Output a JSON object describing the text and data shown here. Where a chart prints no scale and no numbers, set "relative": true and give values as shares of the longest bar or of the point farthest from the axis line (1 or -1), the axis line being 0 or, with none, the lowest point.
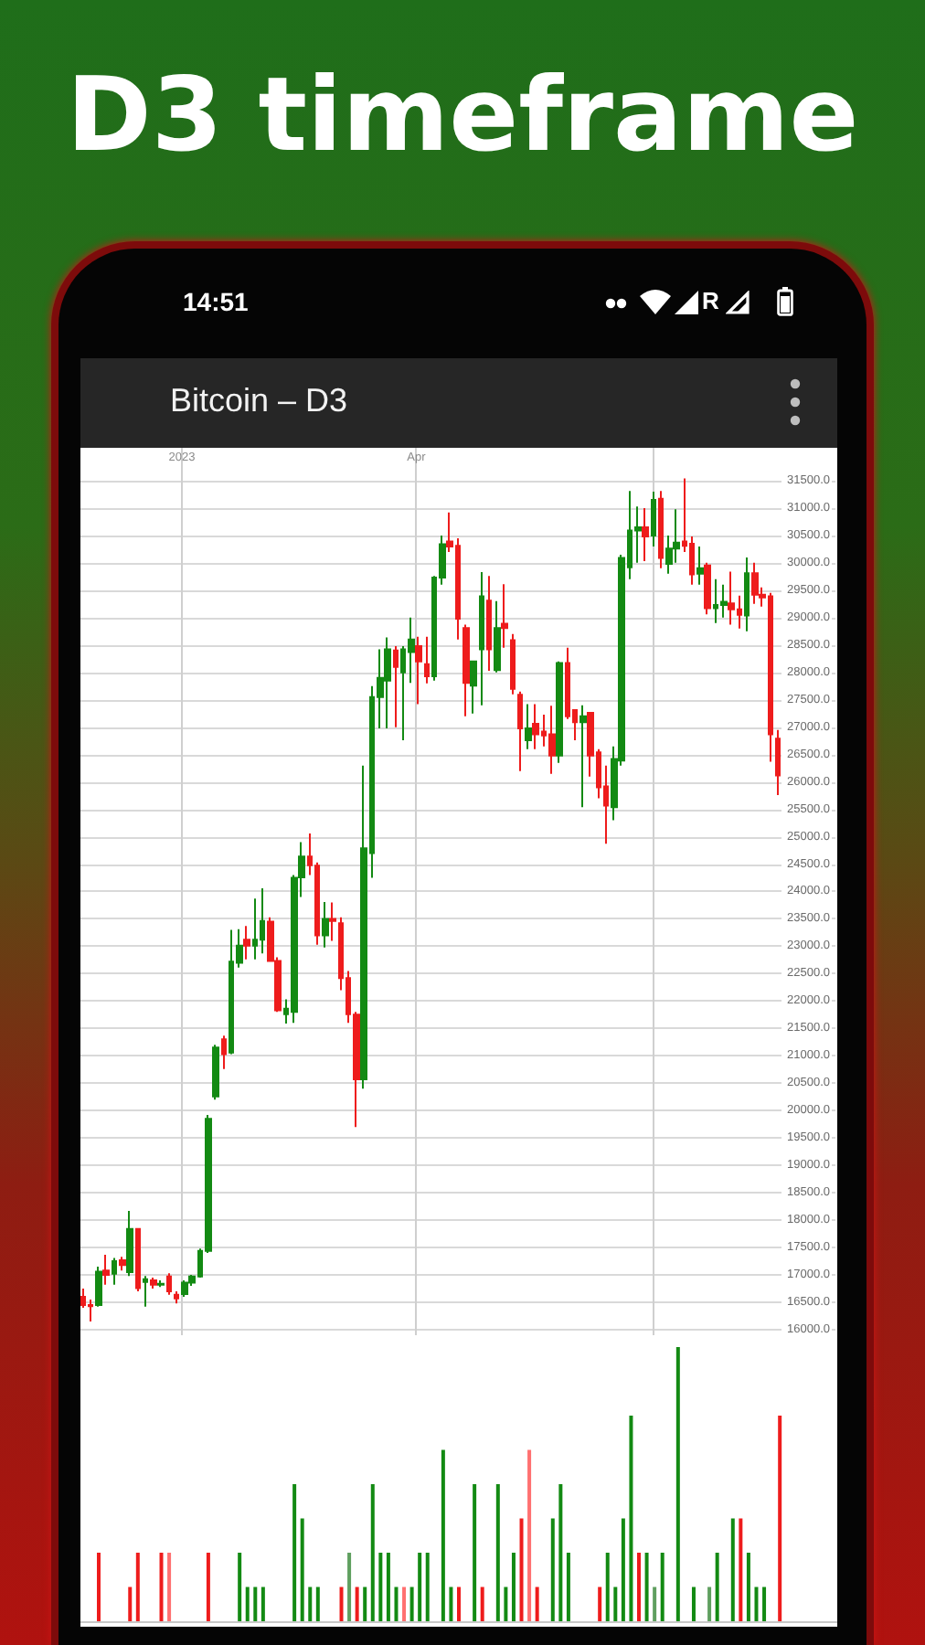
{
  "chart_data": [
    {
      "type": "candlestick",
      "title": "D3 timeframe",
      "subtitle": "Bitcoin – D3",
      "annotations": [
        "14:51",
        "R"
      ],
      "x": [
        "2022-11-24",
        "2022-11-27",
        "2022-11-30",
        "2022-12-03",
        "2022-12-06",
        "2022-12-09",
        "2022-12-12",
        "2022-12-15",
        "2022-12-18",
        "2022-12-21",
        "2022-12-24",
        "2022-12-27",
        "2022-12-30",
        "2023-01-02",
        "2023-01-05",
        "2023-01-08",
        "2023-01-11",
        "2023-01-14",
        "2023-01-17",
        "2023-01-20",
        "2023-01-23",
        "2023-01-26",
        "2023-01-29",
        "2023-02-01",
        "2023-02-04",
        "2023-02-07",
        "2023-02-10",
        "2023-02-13",
        "2023-02-16",
        "2023-02-19",
        "2023-02-22",
        "2023-02-25",
        "2023-02-28",
        "2023-03-03",
        "2023-03-06",
        "2023-03-09",
        "2023-03-12",
        "2023-03-15",
        "2023-03-18",
        "2023-03-21",
        "2023-03-24",
        "2023-03-27",
        "2023-03-30",
        "2023-04-02",
        "2023-04-05",
        "2023-04-08",
        "2023-04-11",
        "2023-04-14",
        "2023-04-17",
        "2023-04-20",
        "2023-04-23",
        "2023-04-26",
        "2023-04-29",
        "2023-05-02",
        "2023-05-05",
        "2023-05-08",
        "2023-05-11",
        "2023-05-14",
        "2023-05-17",
        "2023-05-20",
        "2023-05-23",
        "2023-05-26",
        "2023-05-29",
        "2023-06-01",
        "2023-06-04",
        "2023-06-07",
        "2023-06-10",
        "2023-06-13",
        "2023-06-16",
        "2023-06-19",
        "2023-06-22",
        "2023-06-25",
        "2023-06-28",
        "2023-07-01",
        "2023-07-04",
        "2023-07-07",
        "2023-07-10",
        "2023-07-13",
        "2023-07-16",
        "2023-07-19",
        "2023-07-22",
        "2023-07-25",
        "2023-07-28",
        "2023-07-31",
        "2023-08-03",
        "2023-08-06",
        "2023-08-09",
        "2023-08-12",
        "2023-08-15",
        "2023-08-18"
      ],
      "ohlc": [
        [
          16600,
          16750,
          16400,
          16450
        ],
        [
          16450,
          16550,
          16150,
          16430
        ],
        [
          16450,
          17150,
          16420,
          17060
        ],
        [
          17080,
          17370,
          16820,
          17000
        ],
        [
          17020,
          17310,
          16820,
          17250
        ],
        [
          17270,
          17330,
          17080,
          17180
        ],
        [
          17050,
          18170,
          16980,
          17840
        ],
        [
          17840,
          17850,
          16700,
          16760
        ],
        [
          16870,
          16980,
          16420,
          16920
        ],
        [
          16900,
          16950,
          16750,
          16820
        ],
        [
          16820,
          16900,
          16780,
          16840
        ],
        [
          16970,
          17030,
          16640,
          16700
        ],
        [
          16640,
          16700,
          16480,
          16570
        ],
        [
          16650,
          16900,
          16600,
          16860
        ],
        [
          16860,
          17000,
          16800,
          16970
        ],
        [
          16970,
          17480,
          16950,
          17440
        ],
        [
          17440,
          19920,
          17400,
          19850
        ],
        [
          20260,
          21200,
          20200,
          21150
        ],
        [
          21300,
          21370,
          20760,
          21030
        ],
        [
          21060,
          23300,
          21030,
          22720
        ],
        [
          22700,
          23310,
          22610,
          23010
        ],
        [
          23120,
          23370,
          22760,
          23010
        ],
        [
          23010,
          23870,
          22760,
          23120
        ],
        [
          23120,
          24060,
          22870,
          23460
        ],
        [
          23450,
          23530,
          22720,
          22730
        ],
        [
          22730,
          22800,
          21800,
          21830
        ],
        [
          21760,
          22030,
          21590,
          21860
        ],
        [
          21800,
          24300,
          21600,
          24250
        ],
        [
          24260,
          24900,
          23900,
          24640
        ],
        [
          24640,
          25060,
          24300,
          24480
        ],
        [
          24470,
          24530,
          23030,
          23200
        ],
        [
          23200,
          23810,
          22980,
          23500
        ],
        [
          23500,
          23800,
          23100,
          23460
        ],
        [
          23420,
          23530,
          22200,
          22420
        ],
        [
          22420,
          22550,
          21600,
          21760
        ],
        [
          21750,
          21800,
          19700,
          20570
        ],
        [
          20570,
          26300,
          20400,
          24790
        ],
        [
          24700,
          27750,
          24250,
          27550
        ],
        [
          27550,
          28420,
          26980,
          27900
        ],
        [
          27850,
          28640,
          26980,
          28420
        ],
        [
          28400,
          28480,
          27000,
          28100
        ],
        [
          28000,
          28480,
          26760,
          28420
        ],
        [
          28370,
          29000,
          27810,
          28600
        ],
        [
          28480,
          28650,
          27420,
          28200
        ],
        [
          28150,
          28650,
          27800,
          27930
        ],
        [
          27930,
          29760,
          27850,
          29730
        ],
        [
          29730,
          30500,
          29600,
          30340
        ],
        [
          30390,
          30920,
          30200,
          30300
        ],
        [
          30310,
          30450,
          28600,
          28980
        ],
        [
          28810,
          28870,
          27200,
          27810
        ],
        [
          27760,
          28200,
          27250,
          28200
        ],
        [
          28420,
          29830,
          27400,
          29390
        ],
        [
          29310,
          29760,
          28030,
          28420
        ],
        [
          28040,
          29300,
          28000,
          28810
        ],
        [
          28890,
          29610,
          28450,
          28810
        ],
        [
          28590,
          28700,
          27600,
          27700
        ],
        [
          27590,
          27650,
          26200,
          26980
        ],
        [
          26760,
          27420,
          26600,
          26980
        ],
        [
          27060,
          27420,
          26600,
          26870
        ],
        [
          26920,
          27230,
          26650,
          26850
        ],
        [
          26870,
          27390,
          26150,
          26480
        ],
        [
          26480,
          28200,
          26350,
          28170
        ],
        [
          28170,
          28450,
          27150,
          27200
        ],
        [
          27310,
          27330,
          26760,
          27090
        ],
        [
          27090,
          27400,
          25540,
          27200
        ],
        [
          27260,
          27260,
          26100,
          26480
        ],
        [
          26540,
          26600,
          25700,
          25900
        ],
        [
          25920,
          26300,
          24870,
          25570
        ],
        [
          25540,
          26650,
          25300,
          26420
        ],
        [
          26390,
          30150,
          26300,
          30090
        ],
        [
          29920,
          31310,
          29700,
          30590
        ],
        [
          30590,
          31030,
          30000,
          30650
        ],
        [
          30650,
          31000,
          30030,
          30480
        ],
        [
          30500,
          31300,
          30300,
          31150
        ],
        [
          31170,
          31310,
          29900,
          30090
        ],
        [
          29980,
          30500,
          29800,
          30260
        ],
        [
          30260,
          30980,
          30000,
          30370
        ],
        [
          30390,
          31540,
          30200,
          30310
        ],
        [
          30350,
          30480,
          29600,
          29790
        ],
        [
          29800,
          30300,
          29600,
          29900
        ],
        [
          29950,
          30000,
          29060,
          29170
        ],
        [
          29170,
          29700,
          28900,
          29230
        ],
        [
          29230,
          29600,
          29000,
          29290
        ],
        [
          29260,
          29840,
          28870,
          29150
        ],
        [
          29150,
          29400,
          28800,
          29050
        ],
        [
          29040,
          30100,
          28750,
          29810
        ],
        [
          29810,
          30000,
          29250,
          29420
        ],
        [
          29420,
          29550,
          29200,
          29370
        ],
        [
          29390,
          29450,
          26370,
          26870
        ],
        [
          26790,
          26950,
          25760,
          26120
        ]
      ],
      "colors": [
        "#ee1c1c",
        "#ee1c1c",
        "#138a13",
        "#ee1c1c",
        "#138a13",
        "#ee1c1c",
        "#138a13",
        "#ee1c1c",
        "#138a13",
        "#ee1c1c",
        "#138a13",
        "#ee1c1c",
        "#ee1c1c",
        "#138a13",
        "#138a13",
        "#138a13",
        "#138a13",
        "#138a13",
        "#ee1c1c",
        "#138a13",
        "#138a13",
        "#ee1c1c",
        "#138a13",
        "#138a13",
        "#ee1c1c",
        "#ee1c1c",
        "#138a13",
        "#138a13",
        "#138a13",
        "#ee1c1c",
        "#ee1c1c",
        "#138a13",
        "#ee1c1c",
        "#ee1c1c",
        "#ee1c1c",
        "#ee1c1c",
        "#138a13",
        "#138a13",
        "#138a13",
        "#138a13",
        "#ee1c1c",
        "#138a13",
        "#138a13",
        "#ee1c1c",
        "#ee1c1c",
        "#138a13",
        "#138a13",
        "#ee1c1c",
        "#ee1c1c",
        "#ee1c1c",
        "#138a13",
        "#138a13",
        "#ee1c1c",
        "#138a13",
        "#ee1c1c",
        "#ee1c1c",
        "#ee1c1c",
        "#138a13",
        "#ee1c1c",
        "#ee1c1c",
        "#ee1c1c",
        "#138a13",
        "#ee1c1c",
        "#ee1c1c",
        "#138a13",
        "#ee1c1c",
        "#ee1c1c",
        "#ee1c1c",
        "#138a13",
        "#138a13",
        "#138a13",
        "#138a13",
        "#ee1c1c",
        "#138a13",
        "#ee1c1c",
        "#138a13",
        "#138a13",
        "#ee1c1c",
        "#ee1c1c",
        "#138a13",
        "#ee1c1c",
        "#138a13",
        "#138a13",
        "#ee1c1c",
        "#ee1c1c",
        "#138a13",
        "#ee1c1c",
        "#ee1c1c",
        "#ee1c1c",
        "#ee1c1c"
      ],
      "xlim": [
        "2022-11-23",
        "2023-09-09"
      ],
      "xticks": [
        {
          "value": "2023-01-01",
          "label": "2023"
        },
        {
          "value": "2023-04-01",
          "label": "Apr"
        },
        {
          "value": "2023-07-01",
          "label": null
        }
      ],
      "ylim": [
        15900,
        32100
      ],
      "yticks": [
        {
          "value": 16000,
          "label": "16000.0"
        },
        {
          "value": 16500,
          "label": "16500.0"
        },
        {
          "value": 17000,
          "label": "17000.0"
        },
        {
          "value": 17500,
          "label": "17500.0"
        },
        {
          "value": 18000,
          "label": "18000.0"
        },
        {
          "value": 18500,
          "label": "18500.0"
        },
        {
          "value": 19000,
          "label": "19000.0"
        },
        {
          "value": 19500,
          "label": "19500.0"
        },
        {
          "value": 20000,
          "label": "20000.0"
        },
        {
          "value": 20500,
          "label": "20500.0"
        },
        {
          "value": 21000,
          "label": "21000.0"
        },
        {
          "value": 21500,
          "label": "21500.0"
        },
        {
          "value": 22000,
          "label": "22000.0"
        },
        {
          "value": 22500,
          "label": "22500.0"
        },
        {
          "value": 23000,
          "label": "23000.0"
        },
        {
          "value": 23500,
          "label": "23500.0"
        },
        {
          "value": 24000,
          "label": "24000.0"
        },
        {
          "value": 24500,
          "label": "24500.0"
        },
        {
          "value": 25000,
          "label": "25000.0"
        },
        {
          "value": 25500,
          "label": "25500.0"
        },
        {
          "value": 26000,
          "label": "26000.0"
        },
        {
          "value": 26500,
          "label": "26500.0"
        },
        {
          "value": 27000,
          "label": "27000.0"
        },
        {
          "value": 27500,
          "label": "27500.0"
        },
        {
          "value": 28000,
          "label": "28000.0"
        },
        {
          "value": 28500,
          "label": "28500.0"
        },
        {
          "value": 29000,
          "label": "29000.0"
        },
        {
          "value": 29500,
          "label": "29500.0"
        },
        {
          "value": 30000,
          "label": "30000.0"
        },
        {
          "value": 30500,
          "label": "30500.0"
        },
        {
          "value": 31000,
          "label": "31000.0"
        },
        {
          "value": 31500,
          "label": "31500.0"
        }
      ],
      "grid": true
    },
    {
      "type": "bar",
      "relative": true,
      "tick_labels": false,
      "x": [
        "2022-11-30",
        "2022-12-12",
        "2022-12-15",
        "2022-12-24",
        "2022-12-27",
        "2023-01-11",
        "2023-01-23",
        "2023-01-26",
        "2023-01-29",
        "2023-02-01",
        "2023-02-13",
        "2023-02-16",
        "2023-02-19",
        "2023-02-22",
        "2023-03-03",
        "2023-03-06",
        "2023-03-09",
        "2023-03-12",
        "2023-03-15",
        "2023-03-18",
        "2023-03-21",
        "2023-03-24",
        "2023-03-27",
        "2023-03-30",
        "2023-04-02",
        "2023-04-05",
        "2023-04-11",
        "2023-04-14",
        "2023-04-17",
        "2023-04-23",
        "2023-04-26",
        "2023-05-02",
        "2023-05-05",
        "2023-05-08",
        "2023-05-11",
        "2023-05-14",
        "2023-05-17",
        "2023-05-23",
        "2023-05-26",
        "2023-05-29",
        "2023-06-10",
        "2023-06-13",
        "2023-06-16",
        "2023-06-19",
        "2023-06-22",
        "2023-06-25",
        "2023-06-28",
        "2023-07-01",
        "2023-07-04",
        "2023-07-10",
        "2023-07-16",
        "2023-07-22",
        "2023-07-25",
        "2023-07-31",
        "2023-08-03",
        "2023-08-06",
        "2023-08-09",
        "2023-08-12",
        "2023-08-18"
      ],
      "values": [
        0.25,
        0.125,
        0.25,
        0.25,
        0.25,
        0.25,
        0.25,
        0.125,
        0.125,
        0.125,
        0.5,
        0.375,
        0.125,
        0.125,
        0.125,
        0.25,
        0.125,
        0.125,
        0.5,
        0.25,
        0.25,
        0.125,
        0.125,
        0.125,
        0.25,
        0.25,
        0.625,
        0.125,
        0.125,
        0.5,
        0.125,
        0.5,
        0.125,
        0.25,
        0.375,
        0.625,
        0.125,
        0.375,
        0.5,
        0.25,
        0.125,
        0.25,
        0.125,
        0.375,
        0.75,
        0.25,
        0.25,
        0.125,
        0.25,
        1,
        0.125,
        0.125,
        0.25,
        0.375,
        0.375,
        0.25,
        0.125,
        0.125,
        0.75
      ],
      "colors": [
        "#ee1c1c",
        "#ee1c1c",
        "#ee1c1c",
        "#ee1c1c",
        "#ff7070",
        "#ee1c1c",
        "#138a13",
        "#138a13",
        "#138a13",
        "#138a13",
        "#138a13",
        "#138a13",
        "#138a13",
        "#138a13",
        "#ee1c1c",
        "#5f9f5f",
        "#ee1c1c",
        "#138a13",
        "#138a13",
        "#138a13",
        "#138a13",
        "#138a13",
        "#ff7070",
        "#138a13",
        "#138a13",
        "#138a13",
        "#138a13",
        "#138a13",
        "#ee1c1c",
        "#138a13",
        "#ee1c1c",
        "#138a13",
        "#138a13",
        "#138a13",
        "#ee1c1c",
        "#ff7070",
        "#ee1c1c",
        "#138a13",
        "#138a13",
        "#138a13",
        "#ee1c1c",
        "#138a13",
        "#138a13",
        "#138a13",
        "#138a13",
        "#ee1c1c",
        "#138a13",
        "#5f9f5f",
        "#138a13",
        "#138a13",
        "#138a13",
        "#5f9f5f",
        "#138a13",
        "#138a13",
        "#ee1c1c",
        "#138a13",
        "#138a13",
        "#138a13",
        "#ee1c1c"
      ],
      "xlim": [
        "2022-11-23",
        "2023-09-09"
      ]
    }
  ]
}
